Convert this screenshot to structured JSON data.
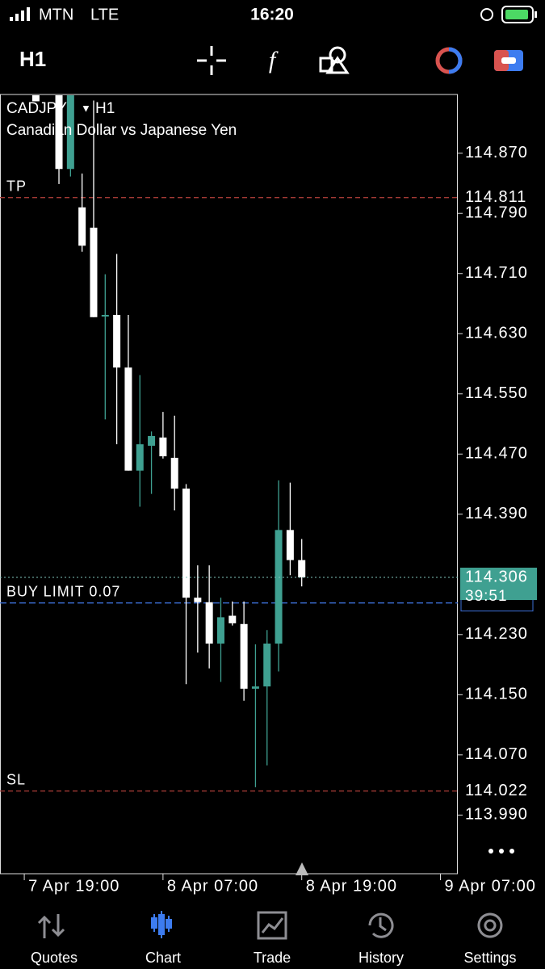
{
  "status": {
    "carrier": "MTN",
    "network": "LTE",
    "time": "16:20"
  },
  "toolbar": {
    "timeframe": "H1"
  },
  "chart": {
    "type": "candlestick",
    "symbol": "CADJPY",
    "timeframe": "H1",
    "description": "Canadian Dollar vs Japanese Yen",
    "up_color": "#3fa091",
    "down_color": "#ffffff",
    "x": [
      1,
      3,
      4,
      5,
      6,
      7,
      8,
      9,
      10,
      11,
      12,
      13,
      14,
      15,
      16,
      17,
      18,
      19,
      20,
      21,
      22,
      23,
      24
    ],
    "open": [
      114.947,
      114.947,
      114.849,
      114.798,
      114.771,
      114.653,
      114.655,
      114.585,
      114.448,
      114.481,
      114.492,
      114.465,
      114.424,
      114.279,
      114.273,
      114.218,
      114.255,
      114.244,
      114.158,
      114.161,
      114.218,
      114.369,
      114.329
    ],
    "high": [
      114.947,
      114.947,
      114.947,
      114.843,
      114.94,
      114.709,
      114.736,
      114.655,
      114.575,
      114.5,
      114.526,
      114.521,
      114.43,
      114.322,
      114.322,
      114.279,
      114.274,
      114.274,
      114.217,
      114.236,
      114.435,
      114.432,
      114.357
    ],
    "low": [
      114.939,
      114.829,
      114.839,
      114.739,
      114.652,
      114.516,
      114.483,
      114.448,
      114.4,
      114.417,
      114.464,
      114.395,
      114.164,
      114.206,
      114.185,
      114.167,
      114.242,
      114.142,
      114.027,
      114.056,
      114.181,
      114.309,
      114.294
    ],
    "close": [
      114.939,
      114.849,
      114.947,
      114.747,
      114.652,
      114.655,
      114.585,
      114.448,
      114.483,
      114.494,
      114.467,
      114.424,
      114.279,
      114.273,
      114.218,
      114.253,
      114.245,
      114.158,
      114.161,
      114.218,
      114.369,
      114.329,
      114.306
    ],
    "xlim": [
      -2.1,
      37.5
    ],
    "xticks": [
      {
        "value": 0,
        "label": "7 Apr 19:00"
      },
      {
        "value": 12,
        "label": "8 Apr 07:00"
      },
      {
        "value": 24,
        "label": "8 Apr 19:00"
      },
      {
        "value": 36,
        "label": "9 Apr 07:00"
      }
    ],
    "ylim": [
      113.912,
      114.947
    ],
    "yticks": [
      {
        "value": 114.87,
        "label": "114.870"
      },
      {
        "value": 114.79,
        "label": "114.790"
      },
      {
        "value": 114.71,
        "label": "114.710"
      },
      {
        "value": 114.63,
        "label": "114.630"
      },
      {
        "value": 114.55,
        "label": "114.550"
      },
      {
        "value": 114.47,
        "label": "114.470"
      },
      {
        "value": 114.39,
        "label": "114.390"
      },
      {
        "value": 114.23,
        "label": "114.230"
      },
      {
        "value": 114.15,
        "label": "114.150"
      },
      {
        "value": 114.07,
        "label": "114.070"
      },
      {
        "value": 113.99,
        "label": "113.990"
      }
    ],
    "take_profit": {
      "label": "TP",
      "value": 114.811
    },
    "stop_loss": {
      "label": "SL",
      "value": 114.022
    },
    "buy_limit": {
      "label": "BUY LIMIT 0.07",
      "value": 114.272
    },
    "bid": {
      "value": 114.306,
      "countdown": "39:51"
    }
  },
  "nav": {
    "tabs": [
      "Quotes",
      "Chart",
      "Trade",
      "History",
      "Settings"
    ],
    "active": 1
  }
}
